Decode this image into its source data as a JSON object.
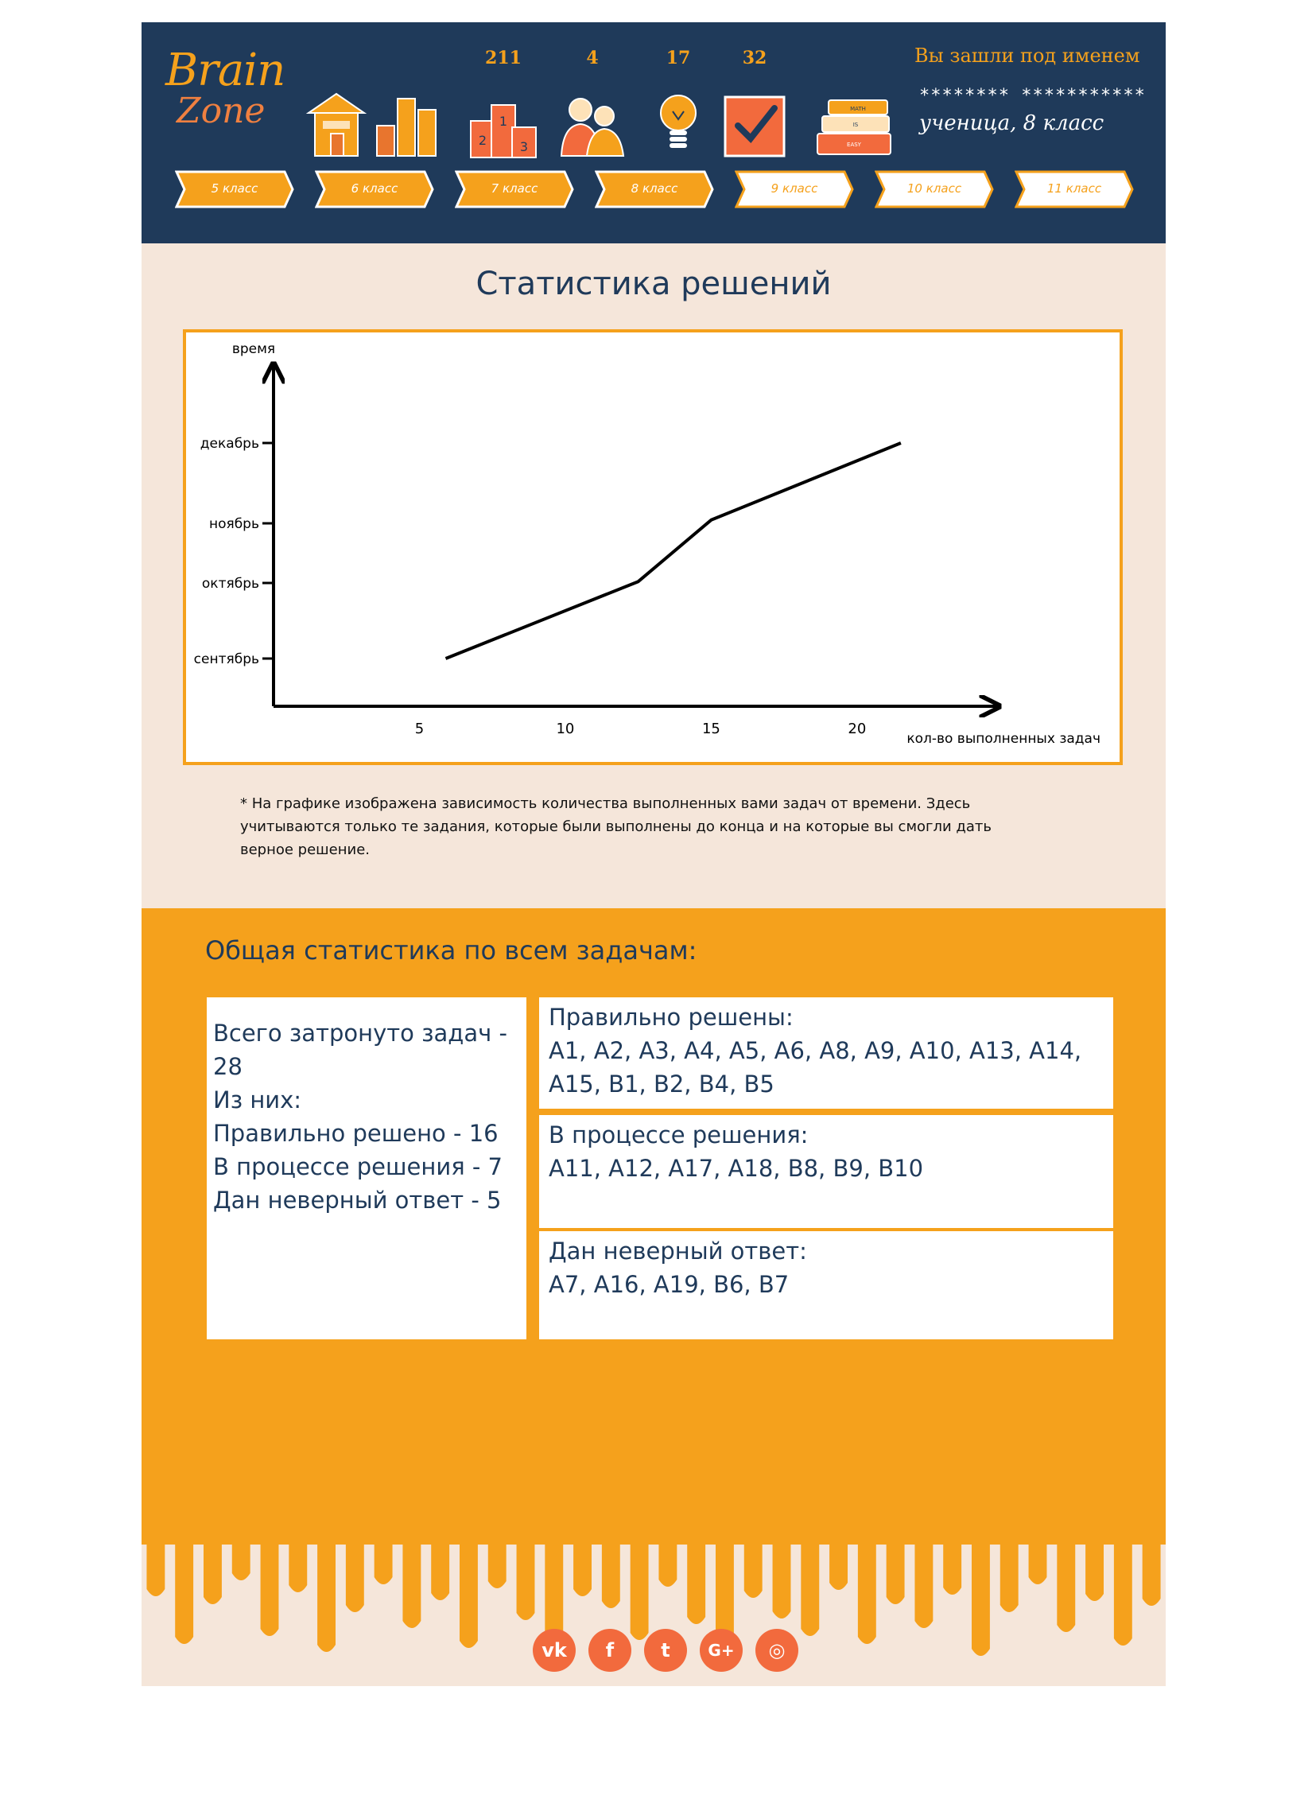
{
  "header": {
    "logo": {
      "line1": "Brain",
      "line2": "Zone"
    },
    "stats": [
      "211",
      "4",
      "17",
      "32"
    ],
    "icons": [
      "home-icon",
      "bar-chart-icon",
      "podium-icon",
      "users-icon",
      "lightbulb-icon",
      "checkbox-icon",
      "books-icon"
    ],
    "books_labels": [
      "MATH",
      "IS",
      "EASY"
    ],
    "podium_labels": [
      "1",
      "2",
      "3"
    ],
    "login_label": "Вы зашли под именем",
    "login_mask": "******** ***********",
    "login_user": "ученица, 8 класс",
    "grades": [
      {
        "label": "5 класс",
        "active": true
      },
      {
        "label": "6 класс",
        "active": true
      },
      {
        "label": "7 класс",
        "active": true
      },
      {
        "label": "8 класс",
        "active": true
      },
      {
        "label": "9 класс",
        "active": false
      },
      {
        "label": "10 класс",
        "active": false
      },
      {
        "label": "11 класс",
        "active": false
      }
    ]
  },
  "stats_section": {
    "title": "Статистика решений",
    "note": "* На графике изображена зависимость количества выполненных вами задач от времени. Здесь учитываются только те задания, которые были выполнены до конца и на которые вы смогли дать верное решение."
  },
  "chart_data": {
    "type": "line",
    "title": "",
    "xlabel": "кол-во выполненных задач",
    "ylabel": "время",
    "x_ticks": [
      5,
      10,
      15,
      20
    ],
    "y_ticks": [
      "сентябрь",
      "октябрь",
      "ноябрь",
      "декабрь"
    ],
    "xlim": [
      0,
      24.8
    ],
    "series": [
      {
        "x": [
          5.9,
          12.5,
          15.0,
          21.5
        ],
        "y": [
          0.0,
          1.0,
          1.8,
          2.8
        ]
      }
    ],
    "grid": false
  },
  "overall": {
    "title": "Общая статистика по всем задачам:",
    "summary": [
      "Всего затронуто задач - 28",
      "Из них:",
      "Правильно решено - 16",
      "В процессе решения - 7",
      "Дан неверный ответ - 5"
    ],
    "groups": [
      {
        "title": "Правильно решены:",
        "items": "А1, А2, А3, А4, А5, А6, А8, А9, А10, А13, А14, А15, В1, В2, В4, В5"
      },
      {
        "title": "В процессе решения:",
        "items": "А11, А12, А17, А18, В8, В9, В10"
      },
      {
        "title": "Дан неверный ответ:",
        "items": "А7, А16, А19, В6, В7"
      }
    ]
  },
  "colors": {
    "navy": "#1f3a5a",
    "orange": "#f5a11c",
    "cream": "#f5e6da",
    "coral": "#f26a3d"
  },
  "footer": {
    "social": [
      {
        "icon": "vk-icon",
        "glyph": "vk"
      },
      {
        "icon": "facebook-icon",
        "glyph": "f"
      },
      {
        "icon": "twitter-icon",
        "glyph": "t"
      },
      {
        "icon": "google-plus-icon",
        "glyph": "G+"
      },
      {
        "icon": "instagram-icon",
        "glyph": "◎"
      }
    ]
  }
}
